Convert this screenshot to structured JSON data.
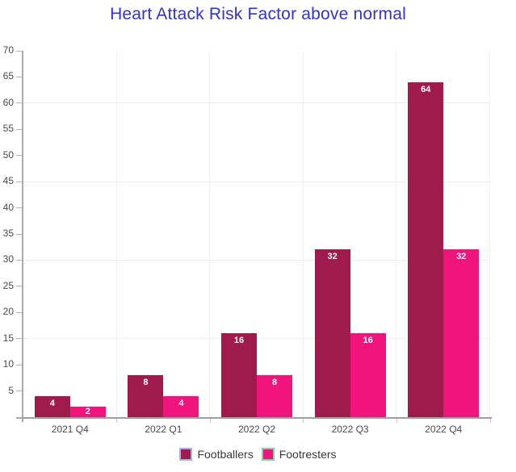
{
  "chart_data": {
    "type": "bar",
    "title": "Heart Attack Risk Factor above normal",
    "title_color": "#3532cb",
    "categories": [
      "2021 Q4",
      "2022 Q1",
      "2022 Q2",
      "2022 Q3",
      "2022 Q4"
    ],
    "series": [
      {
        "name": "Footballers",
        "color": "#9e1b4b",
        "legend_border": "#a3b1f2",
        "values": [
          4,
          8,
          16,
          32,
          64
        ]
      },
      {
        "name": "Footresters",
        "color": "#f0147c",
        "legend_border": "#7fd4a0",
        "values": [
          2,
          4,
          8,
          16,
          32
        ]
      }
    ],
    "ylim": [
      0,
      70
    ],
    "ytick_step": 5,
    "gridlines_y": [
      15,
      30,
      45,
      60
    ],
    "grid": "on",
    "xlabel": "",
    "ylabel": "",
    "legend_position": "bottom",
    "value_labels": "inside-top, white"
  }
}
